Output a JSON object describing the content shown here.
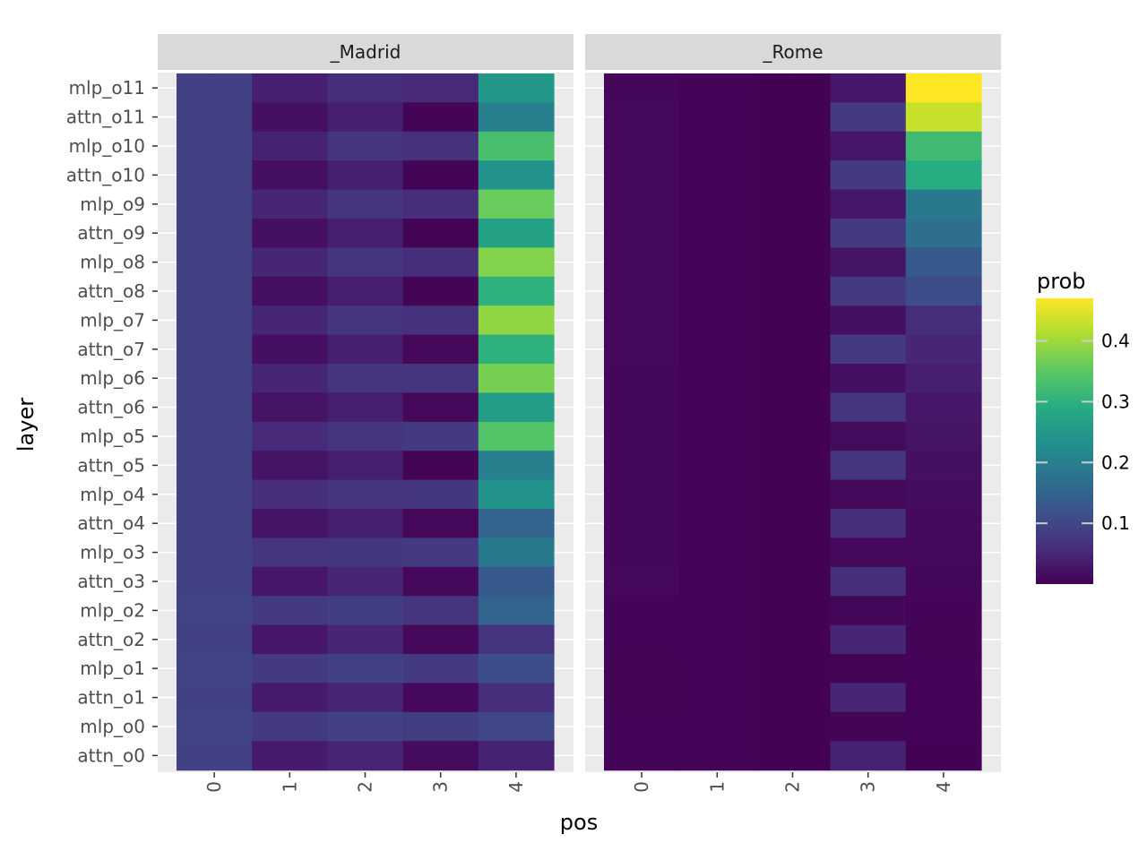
{
  "chart_data": {
    "type": "heatmap",
    "xlabel": "pos",
    "ylabel": "layer",
    "x": [
      "0",
      "1",
      "2",
      "3",
      "4"
    ],
    "layers": [
      "mlp_o11",
      "attn_o11",
      "mlp_o10",
      "attn_o10",
      "mlp_o9",
      "attn_o9",
      "mlp_o8",
      "attn_o8",
      "mlp_o7",
      "attn_o7",
      "mlp_o6",
      "attn_o6",
      "mlp_o5",
      "attn_o5",
      "mlp_o4",
      "attn_o4",
      "mlp_o3",
      "attn_o3",
      "mlp_o2",
      "attn_o2",
      "mlp_o1",
      "attn_o1",
      "mlp_o0",
      "attn_o0"
    ],
    "legend": {
      "title": "prob",
      "ticks": [
        "0.1",
        "0.2",
        "0.3",
        "0.4"
      ],
      "tick_values": [
        0.1,
        0.2,
        0.3,
        0.4
      ],
      "range": [
        0.0,
        0.47
      ],
      "placement": "right"
    },
    "facets": [
      {
        "label": "_Madrid",
        "values": [
          [
            0.09,
            0.04,
            0.06,
            0.055,
            0.25
          ],
          [
            0.09,
            0.02,
            0.04,
            0.005,
            0.2
          ],
          [
            0.09,
            0.045,
            0.07,
            0.065,
            0.33
          ],
          [
            0.09,
            0.02,
            0.04,
            0.005,
            0.24
          ],
          [
            0.09,
            0.05,
            0.07,
            0.06,
            0.36
          ],
          [
            0.09,
            0.02,
            0.04,
            0.005,
            0.27
          ],
          [
            0.09,
            0.05,
            0.07,
            0.06,
            0.38
          ],
          [
            0.09,
            0.02,
            0.04,
            0.005,
            0.3
          ],
          [
            0.09,
            0.05,
            0.07,
            0.065,
            0.39
          ],
          [
            0.09,
            0.02,
            0.04,
            0.01,
            0.3
          ],
          [
            0.09,
            0.05,
            0.07,
            0.07,
            0.37
          ],
          [
            0.09,
            0.025,
            0.04,
            0.01,
            0.26
          ],
          [
            0.09,
            0.055,
            0.07,
            0.08,
            0.34
          ],
          [
            0.09,
            0.025,
            0.04,
            0.005,
            0.2
          ],
          [
            0.09,
            0.06,
            0.07,
            0.075,
            0.24
          ],
          [
            0.09,
            0.025,
            0.04,
            0.01,
            0.15
          ],
          [
            0.09,
            0.07,
            0.075,
            0.08,
            0.19
          ],
          [
            0.09,
            0.03,
            0.05,
            0.01,
            0.13
          ],
          [
            0.095,
            0.08,
            0.085,
            0.07,
            0.15
          ],
          [
            0.09,
            0.03,
            0.05,
            0.01,
            0.07
          ],
          [
            0.095,
            0.08,
            0.09,
            0.08,
            0.11
          ],
          [
            0.09,
            0.035,
            0.05,
            0.01,
            0.06
          ],
          [
            0.095,
            0.08,
            0.09,
            0.085,
            0.1
          ],
          [
            0.09,
            0.035,
            0.05,
            0.015,
            0.045
          ]
        ]
      },
      {
        "label": "_Rome",
        "values": [
          [
            0.008,
            0.003,
            0.001,
            0.03,
            0.47
          ],
          [
            0.01,
            0.003,
            0.001,
            0.08,
            0.43
          ],
          [
            0.01,
            0.003,
            0.001,
            0.03,
            0.32
          ],
          [
            0.01,
            0.003,
            0.001,
            0.08,
            0.29
          ],
          [
            0.01,
            0.003,
            0.001,
            0.03,
            0.19
          ],
          [
            0.01,
            0.003,
            0.001,
            0.08,
            0.17
          ],
          [
            0.01,
            0.003,
            0.001,
            0.025,
            0.13
          ],
          [
            0.01,
            0.003,
            0.001,
            0.08,
            0.11
          ],
          [
            0.01,
            0.003,
            0.001,
            0.02,
            0.06
          ],
          [
            0.01,
            0.003,
            0.001,
            0.08,
            0.05
          ],
          [
            0.008,
            0.003,
            0.001,
            0.02,
            0.04
          ],
          [
            0.008,
            0.003,
            0.001,
            0.07,
            0.03
          ],
          [
            0.008,
            0.003,
            0.001,
            0.015,
            0.025
          ],
          [
            0.008,
            0.003,
            0.001,
            0.07,
            0.02
          ],
          [
            0.008,
            0.003,
            0.001,
            0.01,
            0.015
          ],
          [
            0.008,
            0.003,
            0.001,
            0.06,
            0.012
          ],
          [
            0.008,
            0.003,
            0.001,
            0.01,
            0.01
          ],
          [
            0.01,
            0.003,
            0.001,
            0.06,
            0.008
          ],
          [
            0.006,
            0.003,
            0.001,
            0.008,
            0.006
          ],
          [
            0.006,
            0.003,
            0.001,
            0.05,
            0.005
          ],
          [
            0.005,
            0.003,
            0.001,
            0.005,
            0.004
          ],
          [
            0.005,
            0.003,
            0.001,
            0.05,
            0.003
          ],
          [
            0.004,
            0.003,
            0.001,
            0.005,
            0.003
          ],
          [
            0.004,
            0.003,
            0.001,
            0.045,
            0.002
          ]
        ]
      }
    ]
  }
}
